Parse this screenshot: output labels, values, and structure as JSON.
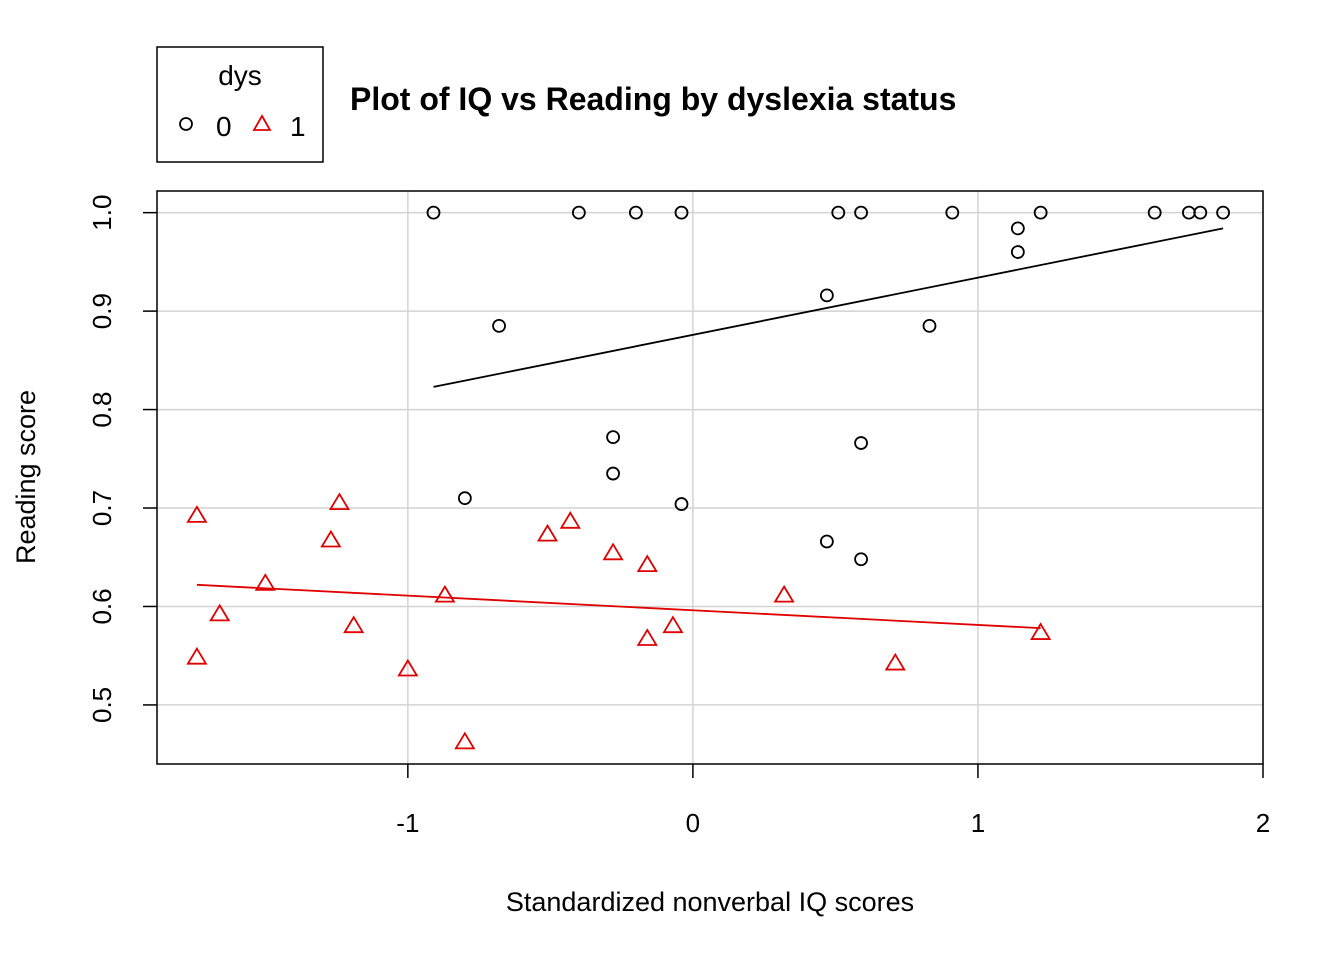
{
  "chart_data": {
    "type": "scatter",
    "title": "Plot of IQ vs Reading by dyslexia status",
    "xlabel": "Standardized nonverbal IQ scores",
    "ylabel": "Reading score",
    "xlim": [
      -1.88,
      2.0
    ],
    "ylim": [
      0.44,
      1.022
    ],
    "x_ticks": [
      -1,
      0,
      1,
      2
    ],
    "x_tick_labels": [
      "-1",
      "0",
      "1",
      "2"
    ],
    "y_ticks": [
      0.5,
      0.6,
      0.7,
      0.8,
      0.9,
      1.0
    ],
    "y_tick_labels": [
      "0.5",
      "0.6",
      "0.7",
      "0.8",
      "0.9",
      "1.0"
    ],
    "grid": true,
    "legend": {
      "title": "dys",
      "placement": "top-left, outside plot area",
      "entries": [
        "0",
        "1"
      ]
    },
    "series": [
      {
        "name": "0",
        "marker": "circle",
        "color": "#000000",
        "points": [
          [
            -0.91,
            1.0
          ],
          [
            -0.4,
            1.0
          ],
          [
            -0.2,
            1.0
          ],
          [
            -0.04,
            1.0
          ],
          [
            0.51,
            1.0
          ],
          [
            0.59,
            1.0
          ],
          [
            0.91,
            1.0
          ],
          [
            1.22,
            1.0
          ],
          [
            1.62,
            1.0
          ],
          [
            1.74,
            1.0
          ],
          [
            1.78,
            1.0
          ],
          [
            1.86,
            1.0
          ],
          [
            1.14,
            0.984
          ],
          [
            1.14,
            0.96
          ],
          [
            0.47,
            0.916
          ],
          [
            -0.68,
            0.885
          ],
          [
            0.83,
            0.885
          ],
          [
            -0.28,
            0.772
          ],
          [
            0.59,
            0.766
          ],
          [
            -0.28,
            0.735
          ],
          [
            -0.8,
            0.71
          ],
          [
            -0.04,
            0.704
          ],
          [
            0.47,
            0.666
          ],
          [
            0.59,
            0.648
          ]
        ],
        "fit_line": {
          "x": [
            -0.91,
            1.86
          ],
          "y": [
            0.823,
            0.984
          ]
        }
      },
      {
        "name": "1",
        "marker": "triangle",
        "color": "#e00000",
        "points": [
          [
            -1.74,
            0.692
          ],
          [
            -1.24,
            0.705
          ],
          [
            -1.27,
            0.667
          ],
          [
            -1.5,
            0.623
          ],
          [
            -1.66,
            0.592
          ],
          [
            -1.74,
            0.548
          ],
          [
            -1.19,
            0.58
          ],
          [
            -1.0,
            0.536
          ],
          [
            -0.87,
            0.611
          ],
          [
            -0.8,
            0.462
          ],
          [
            -0.51,
            0.673
          ],
          [
            -0.43,
            0.686
          ],
          [
            -0.28,
            0.654
          ],
          [
            -0.16,
            0.642
          ],
          [
            -0.16,
            0.567
          ],
          [
            -0.07,
            0.58
          ],
          [
            0.32,
            0.611
          ],
          [
            0.71,
            0.542
          ],
          [
            1.22,
            0.573
          ]
        ],
        "fit_line": {
          "x": [
            -1.74,
            1.22
          ],
          "y": [
            0.622,
            0.578
          ]
        }
      }
    ]
  }
}
